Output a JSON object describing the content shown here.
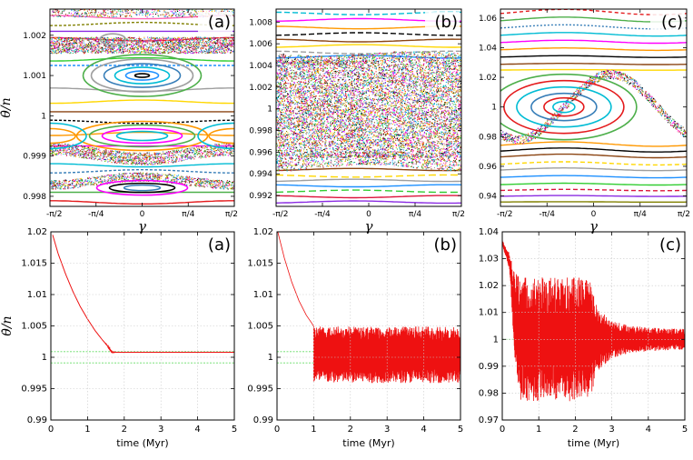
{
  "chart_data": [
    {
      "id": "a_top",
      "type": "scatter",
      "panel_label": "(a)",
      "xlabel": "γ",
      "ylabel": "θ̇/n",
      "xlim": [
        -1.5708,
        1.5708
      ],
      "ylim": [
        0.99775,
        1.00265
      ],
      "xticks": [
        "-π/2",
        "-π/4",
        "0",
        "π/4",
        "π/2"
      ],
      "yticks": [
        0.998,
        0.999,
        1,
        1.001,
        1.002
      ],
      "ytick_labels": [
        "0.998",
        "0.999",
        "1",
        "1.001",
        "1.002"
      ],
      "grid": false,
      "structure": {
        "islands": [
          {
            "center_x": 0,
            "center_y": 1.001,
            "half_width_y": 0.00033,
            "note": "central resonance island"
          },
          {
            "center_x": 0,
            "center_y": 0.9995,
            "half_width_y": 0.00045
          },
          {
            "center_x": 0,
            "center_y": 0.9982,
            "half_width_y": 0.0002
          }
        ],
        "chaotic_bands_y": [
          1.0016,
          0.99905,
          0.99835,
          1.00255
        ]
      }
    },
    {
      "id": "b_top",
      "type": "scatter",
      "panel_label": "(b)",
      "xlabel": "γ",
      "ylabel": "",
      "xlim": [
        -1.5708,
        1.5708
      ],
      "ylim": [
        0.991,
        1.0092
      ],
      "xticks": [
        "-π/2",
        "-π/4",
        "0",
        "π/4",
        "π/2"
      ],
      "yticks": [
        0.992,
        0.994,
        0.996,
        0.998,
        1,
        1.002,
        1.004,
        1.006,
        1.008
      ],
      "ytick_labels": [
        "0.992",
        "0.994",
        "0.996",
        "0.998",
        "1",
        "1.002",
        "1.004",
        "1.006",
        "1.008"
      ],
      "grid": false,
      "structure": {
        "chaotic_region_y": [
          0.9955,
          1.0045
        ],
        "regular_curves_above": 1.0048,
        "regular_curves_below": 0.9945
      }
    },
    {
      "id": "c_top",
      "type": "scatter",
      "panel_label": "(c)",
      "xlabel": "γ",
      "ylabel": "",
      "xlim": [
        -1.5708,
        1.5708
      ],
      "ylim": [
        0.933,
        1.066
      ],
      "xticks": [
        "-π/2",
        "-π/4",
        "0",
        "π/4",
        "π/2"
      ],
      "yticks": [
        0.94,
        0.96,
        0.98,
        1,
        1.02,
        1.04,
        1.06
      ],
      "ytick_labels": [
        "0.94",
        "0.96",
        "0.98",
        "1",
        "1.02",
        "1.04",
        "1.06"
      ],
      "grid": false,
      "structure": {
        "islands": [
          {
            "center_x": -0.5,
            "center_y": 1.0,
            "half_width_y": 0.024,
            "note": "large resonance island"
          }
        ]
      }
    },
    {
      "id": "a_bottom",
      "type": "line",
      "panel_label": "(a)",
      "xlabel": "time (Myr)",
      "ylabel": "θ̇/n",
      "xlim": [
        0,
        5
      ],
      "ylim": [
        0.99,
        1.02
      ],
      "xticks": [
        0,
        1,
        2,
        3,
        4,
        5
      ],
      "yticks": [
        0.99,
        0.995,
        1,
        1.005,
        1.01,
        1.015,
        1.02
      ],
      "ytick_labels": [
        "0.99",
        "0.995",
        "1",
        "1.005",
        "1.01",
        "1.015",
        "1.02"
      ],
      "grid": true,
      "reference_lines": [
        0.9991,
        1.0009
      ],
      "series": [
        {
          "color": "#ee1111",
          "x": [
            0.05,
            0.2,
            0.4,
            0.6,
            0.8,
            1.0,
            1.2,
            1.4,
            1.55,
            1.6,
            1.65,
            1.7,
            1.8,
            2.0,
            3.0,
            4.0,
            5.0
          ],
          "y": [
            1.0195,
            1.0165,
            1.0133,
            1.0105,
            1.0081,
            1.0061,
            1.0043,
            1.0028,
            1.0018,
            1.0013,
            1.0009,
            1.0008,
            1.0008,
            1.0008,
            1.0008,
            1.0008,
            1.0008
          ],
          "noise": [
            0,
            0,
            0,
            0,
            0,
            0,
            0,
            0,
            0.0001,
            0.0002,
            0.0002,
            0.0001,
            0,
            0,
            0,
            0,
            0
          ]
        }
      ]
    },
    {
      "id": "b_bottom",
      "type": "line",
      "panel_label": "(b)",
      "xlabel": "time (Myr)",
      "ylabel": "",
      "xlim": [
        0,
        5
      ],
      "ylim": [
        0.99,
        1.02
      ],
      "xticks": [
        0,
        1,
        2,
        3,
        4,
        5
      ],
      "yticks": [
        0.99,
        0.995,
        1,
        1.005,
        1.01,
        1.015,
        1.02
      ],
      "ytick_labels": [
        "0.99",
        "0.995",
        "1",
        "1.005",
        "1.01",
        "1.015",
        "1.02"
      ],
      "grid": true,
      "reference_lines": [
        0.9991,
        1.0009
      ],
      "series": [
        {
          "color": "#ee1111",
          "decay_x": [
            0.0,
            0.2,
            0.4,
            0.6,
            0.8,
            0.95,
            1.0
          ],
          "decay_y": [
            1.0205,
            1.0158,
            1.012,
            1.009,
            1.0067,
            1.0054,
            1.0049
          ],
          "oscillation_x_range": [
            1.0,
            5.0
          ],
          "oscillation_envelope": [
            0.9959,
            1.0049
          ]
        }
      ]
    },
    {
      "id": "c_bottom",
      "type": "line",
      "panel_label": "(c)",
      "xlabel": "time (Myr)",
      "ylabel": "",
      "xlim": [
        0,
        5
      ],
      "ylim": [
        0.97,
        1.04
      ],
      "xticks": [
        0,
        1,
        2,
        3,
        4,
        5
      ],
      "yticks": [
        0.97,
        0.98,
        0.99,
        1,
        1.01,
        1.02,
        1.03,
        1.04
      ],
      "ytick_labels": [
        "0.97",
        "0.98",
        "0.99",
        "1",
        "1.01",
        "1.02",
        "1.03",
        "1.04"
      ],
      "grid": true,
      "reference_lines": [
        1.0
      ],
      "series": [
        {
          "color": "#ee1111",
          "envelope_x": [
            0.0,
            0.2,
            0.35,
            0.5,
            1.0,
            1.5,
            2.0,
            2.4,
            2.6,
            3.0,
            3.5,
            4.0,
            4.5,
            5.0
          ],
          "envelope_upper": [
            1.037,
            1.032,
            1.025,
            1.023,
            1.023,
            1.023,
            1.023,
            1.023,
            1.012,
            1.007,
            1.005,
            1.0045,
            1.004,
            1.004
          ],
          "envelope_lower": [
            1.035,
            1.026,
            0.99,
            0.977,
            0.977,
            0.977,
            0.977,
            0.977,
            0.988,
            0.993,
            0.995,
            0.9955,
            0.996,
            0.996
          ]
        }
      ]
    }
  ]
}
